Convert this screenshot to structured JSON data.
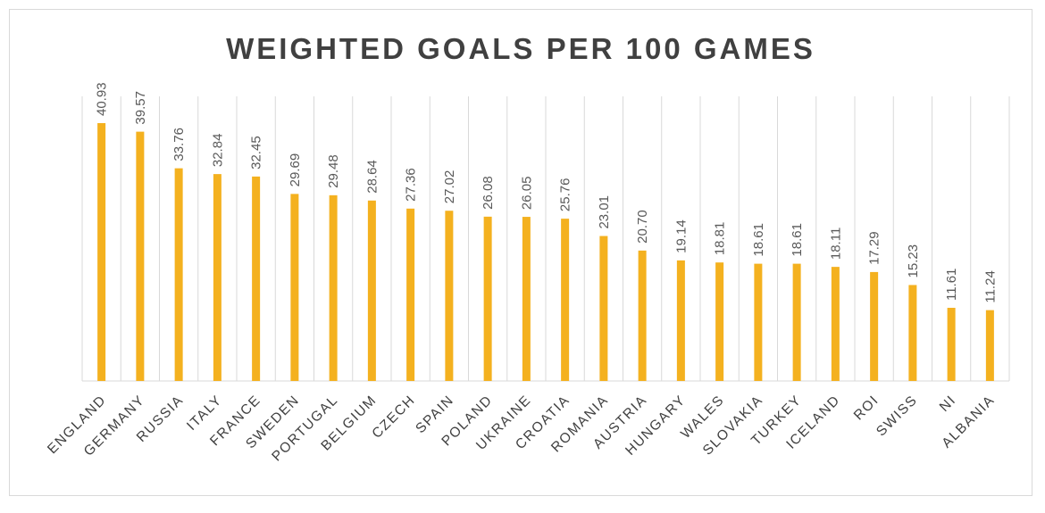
{
  "chart_data": {
    "type": "bar",
    "title": "WEIGHTED GOALS PER 100 GAMES",
    "xlabel": "",
    "ylabel": "",
    "categories": [
      "ENGLAND",
      "GERMANY",
      "RUSSIA",
      "ITALY",
      "FRANCE",
      "SWEDEN",
      "PORTUGAL",
      "BELGIUM",
      "CZECH",
      "SPAIN",
      "POLAND",
      "UKRAINE",
      "CROATIA",
      "ROMANIA",
      "AUSTRIA",
      "HUNGARY",
      "WALES",
      "SLOVAKIA",
      "TURKEY",
      "ICELAND",
      "ROI",
      "SWISS",
      "NI",
      "ALBANIA"
    ],
    "values": [
      40.93,
      39.57,
      33.76,
      32.84,
      32.45,
      29.69,
      29.48,
      28.64,
      27.36,
      27.02,
      26.08,
      26.05,
      25.76,
      23.01,
      20.7,
      19.14,
      18.81,
      18.61,
      18.61,
      18.11,
      17.29,
      15.23,
      11.61,
      11.24
    ],
    "value_labels": [
      "40.93",
      "39.57",
      "33.76",
      "32.84",
      "32.45",
      "29.69",
      "29.48",
      "28.64",
      "27.36",
      "27.02",
      "26.08",
      "26.05",
      "25.76",
      "23.01",
      "20.70",
      "19.14",
      "18.81",
      "18.61",
      "18.61",
      "18.11",
      "17.29",
      "15.23",
      "11.61",
      "11.24"
    ],
    "ylim": [
      0,
      42
    ],
    "grid": "vertical",
    "legend": "none",
    "colors": {
      "bar": "#F4B11F",
      "grid": "#d9d9d9",
      "text": "#404040",
      "label": "#595959"
    }
  }
}
